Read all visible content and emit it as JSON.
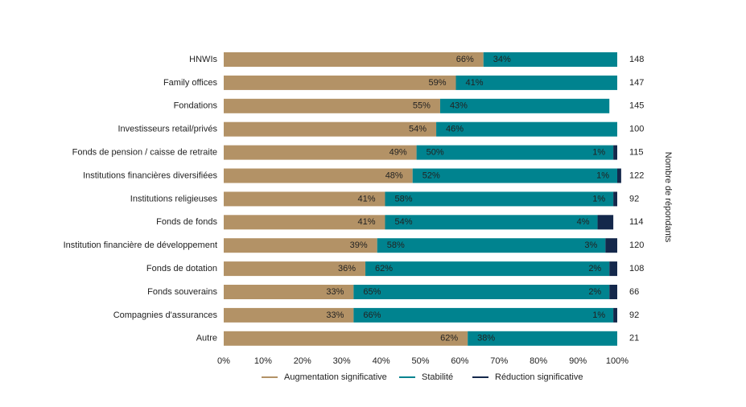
{
  "chart_data": {
    "type": "stacked-bar-horizontal",
    "categories": [
      "HNWIs",
      "Family offices",
      "Fondations",
      "Investisseurs retail/privés",
      "Fonds de pension / caisse de retraite",
      "Institutions financières diversifiées",
      "Institutions religieuses",
      "Fonds de fonds",
      "Institution financière de développement",
      "Fonds de dotation",
      "Fonds souverains",
      "Compagnies d'assurances",
      "Autre"
    ],
    "series": [
      {
        "name": "Augmentation significative",
        "color": "#b39266",
        "values": [
          66,
          59,
          55,
          54,
          49,
          48,
          41,
          41,
          39,
          36,
          33,
          33,
          62
        ],
        "value_labels": [
          "66%",
          "59%",
          "55%",
          "54%",
          "49%",
          "48%",
          "41%",
          "41%",
          "39%",
          "36%",
          "33%",
          "33%",
          "62%"
        ]
      },
      {
        "name": "Stabilité",
        "color": "#00838f",
        "values": [
          34,
          41,
          43,
          46,
          50,
          52,
          58,
          54,
          58,
          62,
          65,
          66,
          38
        ],
        "value_labels": [
          "34%",
          "41%",
          "43%",
          "46%",
          "50%",
          "52%",
          "58%",
          "54%",
          "58%",
          "62%",
          "65%",
          "66%",
          "38%"
        ]
      },
      {
        "name": "Réduction significative",
        "color": "#14284b",
        "values": [
          0,
          0,
          0,
          0,
          1,
          1,
          1,
          4,
          3,
          2,
          2,
          1,
          0
        ],
        "value_labels": [
          null,
          null,
          null,
          null,
          "1%",
          "1%",
          "1%",
          "4%",
          "3%",
          "2%",
          "2%",
          "1%",
          null
        ]
      }
    ],
    "xlim": [
      0,
      100
    ],
    "xticks": [
      {
        "value": 0,
        "label": "0%"
      },
      {
        "value": 10,
        "label": "10%"
      },
      {
        "value": 20,
        "label": "20%"
      },
      {
        "value": 30,
        "label": "30%"
      },
      {
        "value": 40,
        "label": "40%"
      },
      {
        "value": 50,
        "label": "50%"
      },
      {
        "value": 60,
        "label": "60%"
      },
      {
        "value": 70,
        "label": "70%"
      },
      {
        "value": 80,
        "label": "80%"
      },
      {
        "value": 90,
        "label": "90%"
      },
      {
        "value": 100,
        "label": "100%"
      }
    ],
    "respondents_label": "Nombre de répondants",
    "respondents": [
      148,
      147,
      145,
      100,
      115,
      122,
      92,
      114,
      120,
      108,
      66,
      92,
      21
    ],
    "legend": "bottom"
  }
}
